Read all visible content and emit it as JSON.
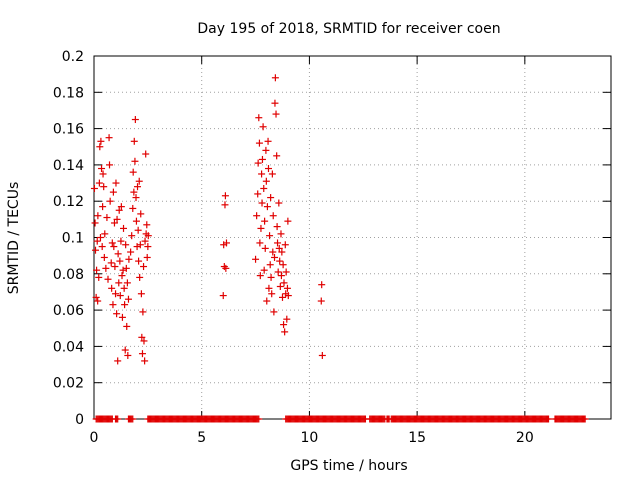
{
  "chart_data": {
    "type": "scatter",
    "title": "Day 195 of 2018, SRMTID for receiver coen",
    "xlabel": "GPS time / hours",
    "ylabel": "SRMTID / TECUs",
    "xlim": [
      0,
      24
    ],
    "ylim": [
      0,
      0.2
    ],
    "xticks": [
      0,
      5,
      10,
      15,
      20
    ],
    "xtick_labels": [
      "0",
      "5",
      "10",
      "15",
      "20"
    ],
    "yticks": [
      0,
      0.02,
      0.04,
      0.06,
      0.08,
      0.1,
      0.12,
      0.14,
      0.16,
      0.18,
      0.2
    ],
    "ytick_labels": [
      "0",
      "0.02",
      "0.04",
      "0.06",
      "0.08",
      "0.1",
      "0.12",
      "0.14",
      "0.16",
      "0.18",
      "0.2"
    ],
    "grid": true,
    "marker": "+",
    "marker_color": "#e00000",
    "series": [
      {
        "name": "SRMTID",
        "points": [
          [
            0.02,
            0.127
          ],
          [
            0.05,
            0.108
          ],
          [
            0.07,
            0.093
          ],
          [
            0.1,
            0.067
          ],
          [
            0.12,
            0.082
          ],
          [
            0.15,
            0.098
          ],
          [
            0.17,
            0.065
          ],
          [
            0.18,
            0.112
          ],
          [
            0.22,
            0.078
          ],
          [
            0.25,
            0.13
          ],
          [
            0.27,
            0.15
          ],
          [
            0.3,
            0.1
          ],
          [
            0.32,
            0.153
          ],
          [
            0.35,
            0.138
          ],
          [
            0.38,
            0.095
          ],
          [
            0.4,
            0.117
          ],
          [
            0.42,
            0.135
          ],
          [
            0.45,
            0.128
          ],
          [
            0.48,
            0.089
          ],
          [
            0.5,
            0.102
          ],
          [
            0.55,
            0.083
          ],
          [
            0.6,
            0.111
          ],
          [
            0.65,
            0.077
          ],
          [
            0.7,
            0.155
          ],
          [
            0.72,
            0.14
          ],
          [
            0.75,
            0.12
          ],
          [
            0.8,
            0.086
          ],
          [
            0.82,
            0.072
          ],
          [
            0.85,
            0.097
          ],
          [
            0.88,
            0.063
          ],
          [
            0.9,
            0.125
          ],
          [
            0.92,
            0.095
          ],
          [
            0.95,
            0.108
          ],
          [
            0.97,
            0.084
          ],
          [
            1.0,
            0.069
          ],
          [
            1.02,
            0.13
          ],
          [
            1.05,
            0.058
          ],
          [
            1.07,
            0.11
          ],
          [
            1.1,
            0.032
          ],
          [
            1.12,
            0.091
          ],
          [
            1.15,
            0.075
          ],
          [
            1.17,
            0.115
          ],
          [
            1.2,
            0.087
          ],
          [
            1.22,
            0.068
          ],
          [
            1.25,
            0.098
          ],
          [
            1.27,
            0.117
          ],
          [
            1.3,
            0.079
          ],
          [
            1.32,
            0.056
          ],
          [
            1.35,
            0.082
          ],
          [
            1.37,
            0.105
          ],
          [
            1.4,
            0.072
          ],
          [
            1.42,
            0.063
          ],
          [
            1.45,
            0.038
          ],
          [
            1.47,
            0.096
          ],
          [
            1.5,
            0.083
          ],
          [
            1.52,
            0.051
          ],
          [
            1.55,
            0.075
          ],
          [
            1.57,
            0.035
          ],
          [
            1.6,
            0.066
          ],
          [
            1.62,
            0.088
          ],
          [
            1.7,
            0.092
          ],
          [
            1.75,
            0.101
          ],
          [
            1.8,
            0.116
          ],
          [
            1.82,
            0.136
          ],
          [
            1.85,
            0.125
          ],
          [
            1.87,
            0.153
          ],
          [
            1.9,
            0.142
          ],
          [
            1.92,
            0.165
          ],
          [
            1.95,
            0.122
          ],
          [
            1.97,
            0.109
          ],
          [
            2.0,
            0.095
          ],
          [
            2.02,
            0.128
          ],
          [
            2.05,
            0.104
          ],
          [
            2.07,
            0.087
          ],
          [
            2.1,
            0.131
          ],
          [
            2.12,
            0.078
          ],
          [
            2.15,
            0.096
          ],
          [
            2.17,
            0.113
          ],
          [
            2.2,
            0.069
          ],
          [
            2.22,
            0.045
          ],
          [
            2.25,
            0.036
          ],
          [
            2.27,
            0.059
          ],
          [
            2.3,
            0.084
          ],
          [
            2.32,
            0.043
          ],
          [
            2.35,
            0.032
          ],
          [
            2.37,
            0.098
          ],
          [
            2.4,
            0.146
          ],
          [
            2.42,
            0.102
          ],
          [
            2.45,
            0.107
          ],
          [
            2.47,
            0.089
          ],
          [
            2.5,
            0.095
          ],
          [
            2.52,
            0.101
          ],
          [
            6.0,
            0.068
          ],
          [
            6.02,
            0.096
          ],
          [
            6.05,
            0.084
          ],
          [
            6.08,
            0.118
          ],
          [
            6.1,
            0.123
          ],
          [
            6.12,
            0.083
          ],
          [
            6.15,
            0.097
          ],
          [
            7.5,
            0.088
          ],
          [
            7.55,
            0.112
          ],
          [
            7.6,
            0.124
          ],
          [
            7.62,
            0.141
          ],
          [
            7.65,
            0.166
          ],
          [
            7.68,
            0.152
          ],
          [
            7.7,
            0.097
          ],
          [
            7.72,
            0.079
          ],
          [
            7.75,
            0.105
          ],
          [
            7.78,
            0.135
          ],
          [
            7.8,
            0.119
          ],
          [
            7.82,
            0.143
          ],
          [
            7.85,
            0.161
          ],
          [
            7.88,
            0.127
          ],
          [
            7.9,
            0.082
          ],
          [
            7.92,
            0.109
          ],
          [
            7.95,
            0.094
          ],
          [
            7.98,
            0.148
          ],
          [
            8.0,
            0.131
          ],
          [
            8.02,
            0.065
          ],
          [
            8.05,
            0.117
          ],
          [
            8.08,
            0.153
          ],
          [
            8.1,
            0.138
          ],
          [
            8.12,
            0.072
          ],
          [
            8.15,
            0.101
          ],
          [
            8.18,
            0.085
          ],
          [
            8.2,
            0.122
          ],
          [
            8.22,
            0.078
          ],
          [
            8.25,
            0.069
          ],
          [
            8.28,
            0.135
          ],
          [
            8.3,
            0.092
          ],
          [
            8.32,
            0.112
          ],
          [
            8.35,
            0.059
          ],
          [
            8.38,
            0.089
          ],
          [
            8.4,
            0.174
          ],
          [
            8.42,
            0.188
          ],
          [
            8.45,
            0.168
          ],
          [
            8.48,
            0.145
          ],
          [
            8.5,
            0.106
          ],
          [
            8.52,
            0.097
          ],
          [
            8.55,
            0.081
          ],
          [
            8.58,
            0.119
          ],
          [
            8.6,
            0.094
          ],
          [
            8.62,
            0.087
          ],
          [
            8.65,
            0.073
          ],
          [
            8.68,
            0.102
          ],
          [
            8.7,
            0.079
          ],
          [
            8.72,
            0.092
          ],
          [
            8.75,
            0.067
          ],
          [
            8.78,
            0.085
          ],
          [
            8.8,
            0.052
          ],
          [
            8.82,
            0.075
          ],
          [
            8.85,
            0.048
          ],
          [
            8.88,
            0.096
          ],
          [
            8.9,
            0.069
          ],
          [
            8.92,
            0.081
          ],
          [
            8.95,
            0.055
          ],
          [
            8.98,
            0.072
          ],
          [
            9.0,
            0.109
          ],
          [
            9.02,
            0.068
          ],
          [
            10.55,
            0.065
          ],
          [
            10.57,
            0.074
          ],
          [
            10.6,
            0.035
          ]
        ]
      },
      {
        "name": "zero-valued samples",
        "value": 0,
        "ranges": [
          [
            0.1,
            0.85
          ],
          [
            1.0,
            1.1
          ],
          [
            1.6,
            1.8
          ],
          [
            2.5,
            7.65
          ],
          [
            8.9,
            12.6
          ],
          [
            12.8,
            13.5
          ],
          [
            13.6,
            13.7
          ],
          [
            13.8,
            21.1
          ],
          [
            21.4,
            22.8
          ]
        ]
      }
    ]
  }
}
